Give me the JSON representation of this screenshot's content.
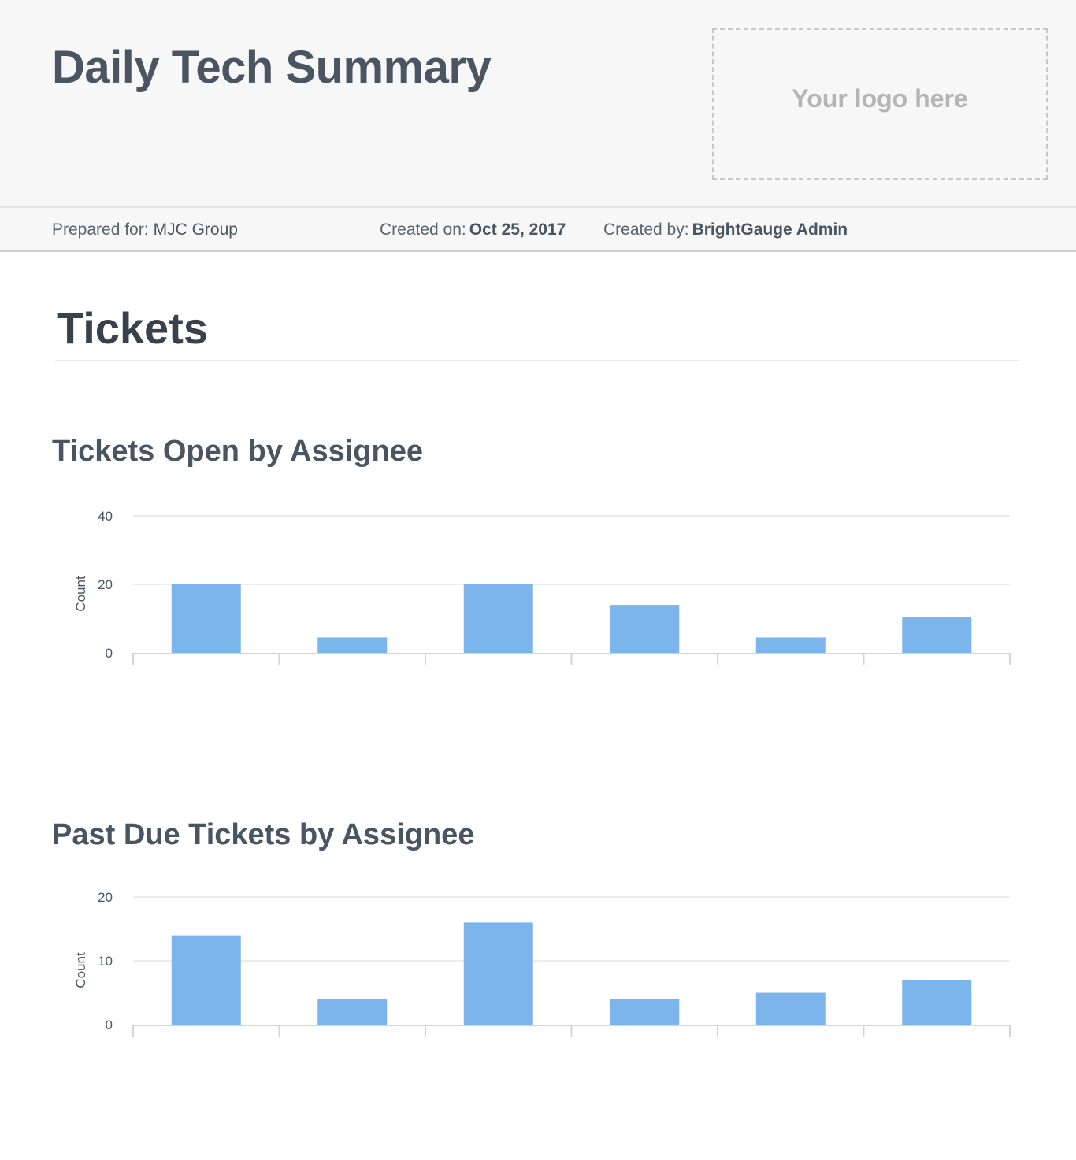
{
  "header": {
    "title": "Daily Tech Summary",
    "logo_placeholder": "Your logo here"
  },
  "meta": {
    "prepared_for_label": "Prepared for:",
    "prepared_for_value": "MJC Group",
    "created_on_label": "Created on:",
    "created_on_value": "Oct 25, 2017",
    "created_by_label": "Created by:",
    "created_by_value": "BrightGauge Admin"
  },
  "section": {
    "title": "Tickets"
  },
  "colors": {
    "bar": "#7cb5ec",
    "grid": "#e6e6e6",
    "axis": "#ccd6eb"
  },
  "chart_data": [
    {
      "type": "bar",
      "title": "Tickets Open by Assignee",
      "ylabel": "Count",
      "xlabel": "",
      "categories": [
        "",
        "",
        "",
        "",
        "",
        ""
      ],
      "values": [
        20,
        4.5,
        20,
        14,
        4.5,
        10.5
      ],
      "ylim": [
        0,
        40
      ],
      "yticks": [
        0,
        20,
        40
      ],
      "grid": true,
      "legend": "none"
    },
    {
      "type": "bar",
      "title": "Past Due Tickets by Assignee",
      "ylabel": "Count",
      "xlabel": "",
      "categories": [
        "",
        "",
        "",
        "",
        "",
        ""
      ],
      "values": [
        14,
        4,
        16,
        4,
        5,
        7
      ],
      "ylim": [
        0,
        20
      ],
      "yticks": [
        0,
        10,
        20
      ],
      "grid": true,
      "legend": "none"
    }
  ]
}
